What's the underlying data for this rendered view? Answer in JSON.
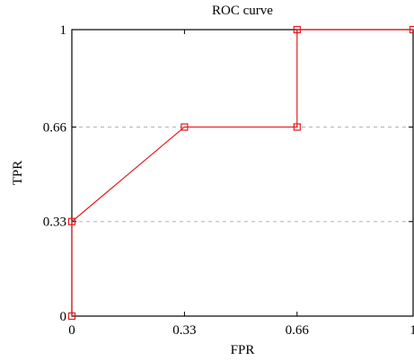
{
  "chart_data": {
    "type": "line",
    "title": "ROC curve",
    "xlabel": "FPR",
    "ylabel": "TPR",
    "xlim": [
      0,
      1
    ],
    "ylim": [
      0,
      1
    ],
    "xticks": [
      {
        "value": 0,
        "label": "0"
      },
      {
        "value": 0.33,
        "label": "0.33"
      },
      {
        "value": 0.66,
        "label": "0.66"
      },
      {
        "value": 1,
        "label": "1"
      }
    ],
    "yticks": [
      {
        "value": 0,
        "label": "0"
      },
      {
        "value": 0.33,
        "label": "0.33"
      },
      {
        "value": 0.66,
        "label": "0.66"
      },
      {
        "value": 1,
        "label": "1"
      }
    ],
    "grid": {
      "y": true,
      "x": false,
      "style": "dashed"
    },
    "series": [
      {
        "color": "#e41a1c",
        "marker": "square-open",
        "points": [
          {
            "x": 0,
            "y": 0
          },
          {
            "x": 0,
            "y": 0.33
          },
          {
            "x": 0.33,
            "y": 0.66
          },
          {
            "x": 0.66,
            "y": 0.66
          },
          {
            "x": 0.66,
            "y": 1
          },
          {
            "x": 1,
            "y": 1
          }
        ]
      }
    ]
  }
}
